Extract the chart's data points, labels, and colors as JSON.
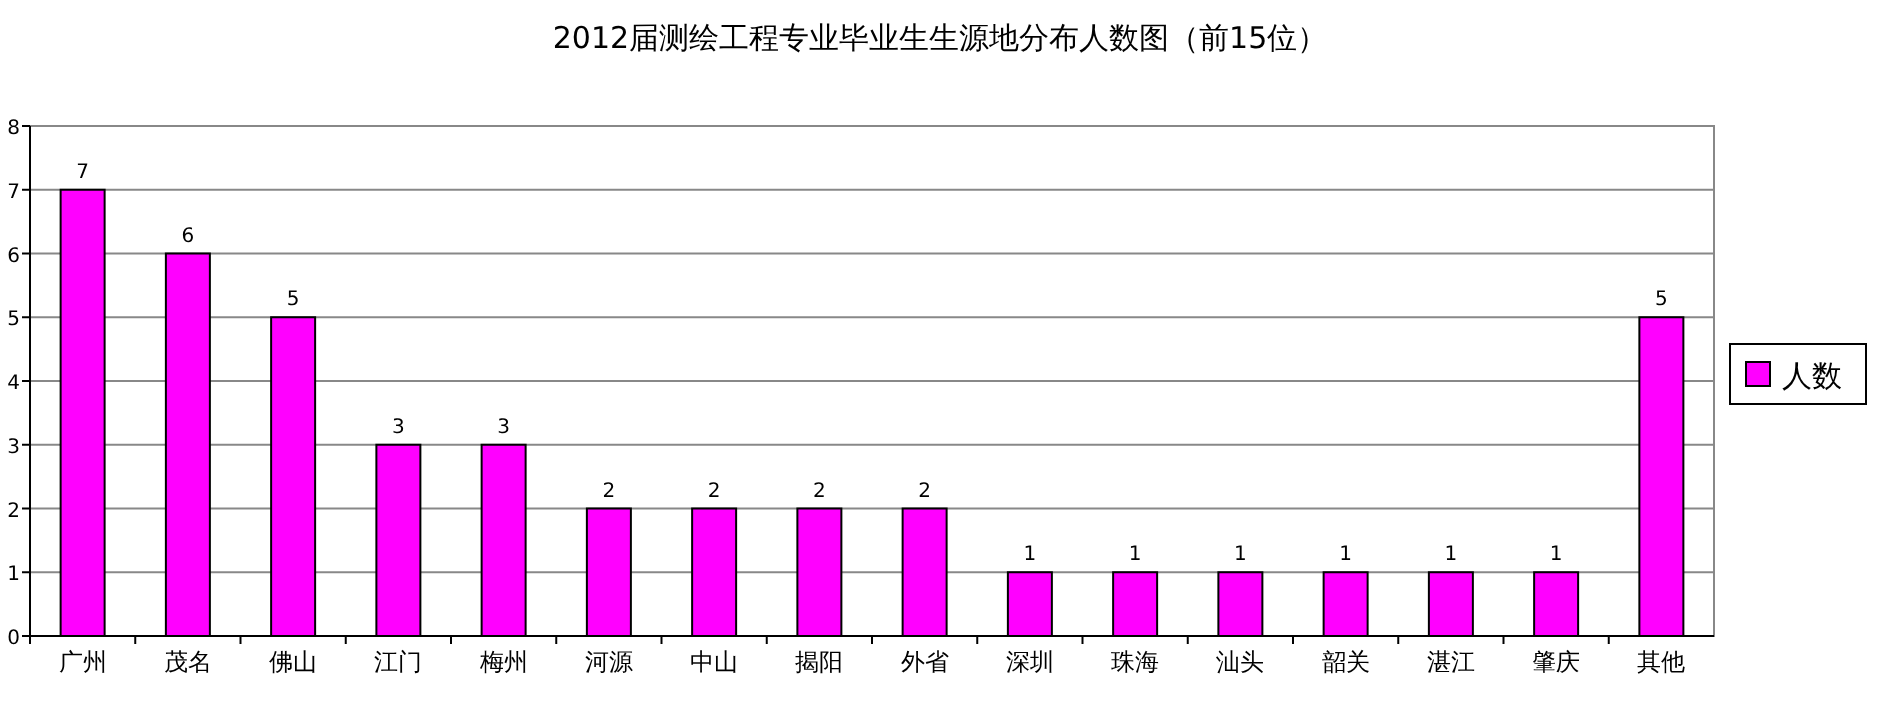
{
  "chart_data": {
    "type": "bar",
    "title": "2012届测绘工程专业毕业生生源地分布人数图（前15位）",
    "categories": [
      "广州",
      "茂名",
      "佛山",
      "江门",
      "梅州",
      "河源",
      "中山",
      "揭阳",
      "外省",
      "深圳",
      "珠海",
      "汕头",
      "韶关",
      "湛江",
      "肇庆",
      "其他"
    ],
    "series": [
      {
        "name": "人数",
        "color": "#ff00ff",
        "values": [
          7,
          6,
          5,
          3,
          3,
          2,
          2,
          2,
          2,
          1,
          1,
          1,
          1,
          1,
          1,
          5
        ]
      }
    ],
    "ylim": [
      0,
      8
    ],
    "yticks": [
      0,
      1,
      2,
      3,
      4,
      5,
      6,
      7,
      8
    ],
    "grid": "y",
    "legend": "right",
    "data_labels": true
  }
}
